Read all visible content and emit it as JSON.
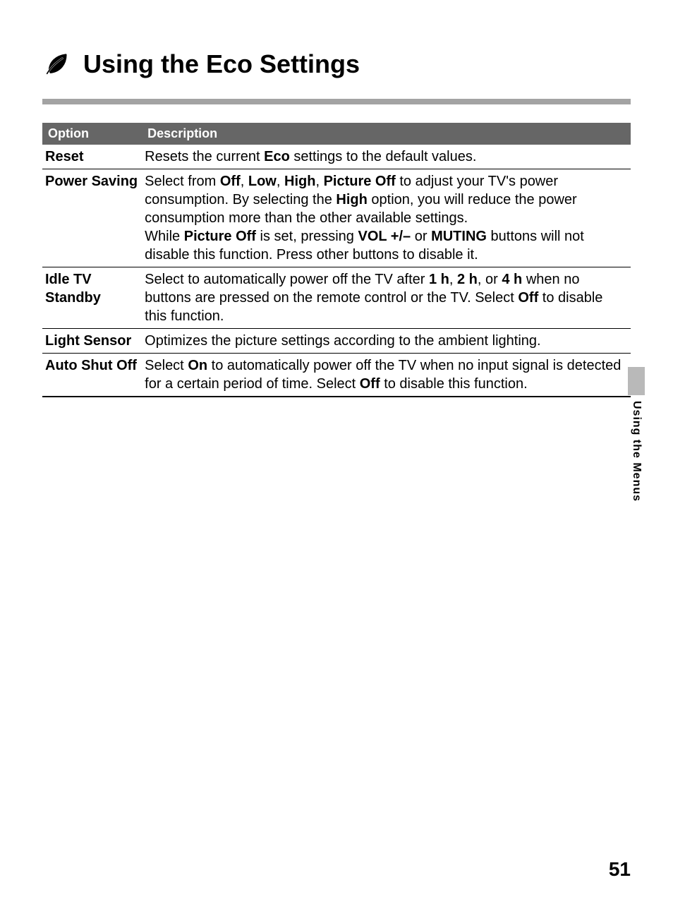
{
  "title": "Using the Eco Settings",
  "divider_color": "#a3a3a3",
  "table": {
    "header_bg": "#666666",
    "header_fg": "#ffffff",
    "columns": [
      "Option",
      "Description"
    ],
    "rows": [
      {
        "option": "Reset",
        "description_html": "Resets the current <b>Eco</b> settings to the default values."
      },
      {
        "option": "Power Saving",
        "description_html": "Select from <b>Off</b>, <b>Low</b>, <b>High</b>, <b>Picture Off</b> to adjust your TV's power consumption. By selecting the <b>High</b> option, you will reduce the power consumption more than the other available settings.<br>While <b>Picture Off</b> is set, pressing <b>VOL +/–</b> or <b>MUTING</b> buttons will not disable this function. Press other buttons to disable it."
      },
      {
        "option": "Idle TV Standby",
        "option_html": "Idle TV<br>Standby",
        "description_html": "Select to automatically power off the TV after <b>1 h</b>, <b>2 h</b>, or <b>4 h</b> when no buttons are pressed on the remote control or the TV. Select <b>Off</b> to disable this function."
      },
      {
        "option": "Light Sensor",
        "description_html": "Optimizes the picture settings according to the ambient lighting."
      },
      {
        "option": "Auto Shut Off",
        "description_html": "Select <b>On</b> to automatically power off the TV when no input signal is detected for a certain period of time. Select <b>Off</b> to disable this function."
      }
    ]
  },
  "side_tab": {
    "label": "Using the Menus",
    "block_color": "#b9b9b9"
  },
  "page_number": "51"
}
